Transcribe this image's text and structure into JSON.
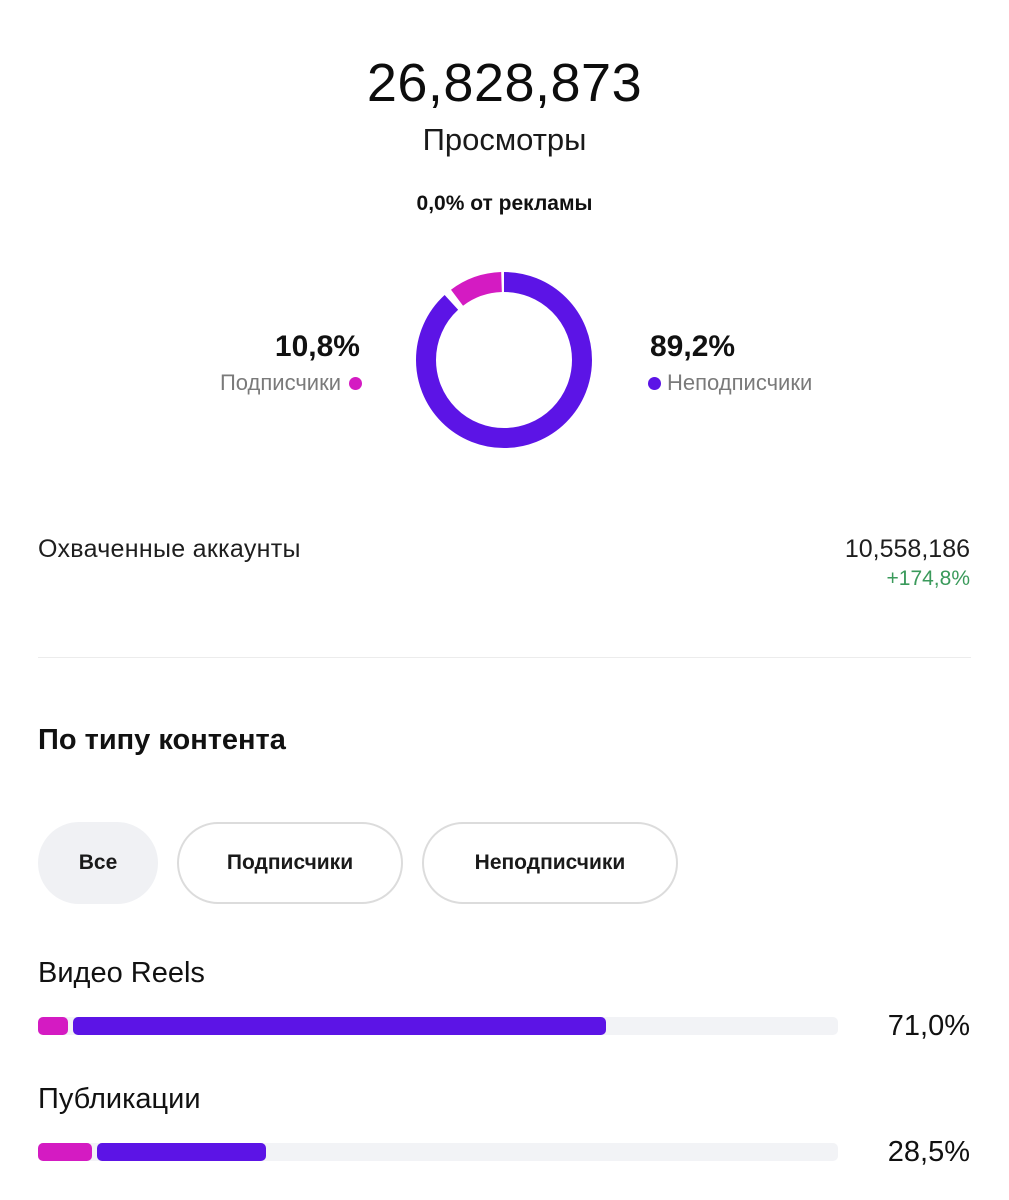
{
  "header": {
    "total_views": "26,828,873",
    "views_label": "Просмотры",
    "ads_share": "0,0% от рекламы"
  },
  "audience_split": {
    "subscribers": {
      "percent_label": "10,8%",
      "legend": "Подписчики",
      "value": 10.8
    },
    "non_subscribers": {
      "percent_label": "89,2%",
      "legend": "Неподписчики",
      "value": 89.2
    }
  },
  "reached_accounts": {
    "label": "Охваченные аккаунты",
    "value": "10,558,186",
    "change": "+174,8%"
  },
  "content_type": {
    "title": "По типу контента",
    "filters": [
      {
        "label": "Все",
        "selected": true
      },
      {
        "label": "Подписчики",
        "selected": false
      },
      {
        "label": "Неподписчики",
        "selected": false
      }
    ],
    "rows": [
      {
        "label": "Видео Reels",
        "percent_label": "71,0%",
        "value": 71.0,
        "subscriber_fraction": 0.037,
        "non_subscriber_fraction": 0.673
      },
      {
        "label": "Публикации",
        "percent_label": "28,5%",
        "value": 28.5,
        "subscriber_fraction": 0.068,
        "non_subscriber_fraction": 0.217
      }
    ]
  },
  "colors": {
    "subscribers": "#d41bc2",
    "non_subscribers": "#5c14e6",
    "track": "#f2f3f6",
    "positive_change": "#3a9a5b"
  }
}
